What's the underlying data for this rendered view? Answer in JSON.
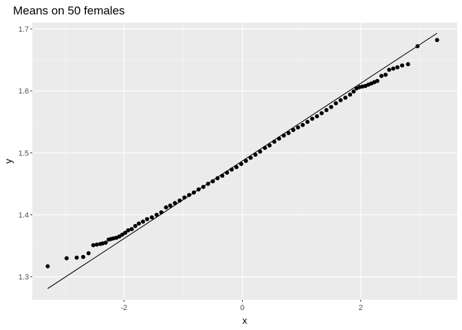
{
  "chart_data": {
    "type": "scatter",
    "title": "Means on 50 females",
    "xlabel": "x",
    "ylabel": "y",
    "xlim": [
      -3.55,
      3.63
    ],
    "ylim": [
      1.263,
      1.71
    ],
    "x_ticks": [
      -2,
      0,
      2
    ],
    "x_tick_labels": [
      "-2",
      "0",
      "2"
    ],
    "y_ticks": [
      1.3,
      1.4,
      1.5,
      1.6,
      1.7
    ],
    "y_tick_labels": [
      "1.3",
      "1.4",
      "1.5",
      "1.6",
      "1.7"
    ],
    "grid": true,
    "reference_line": {
      "x": [
        -3.29,
        3.29
      ],
      "y": [
        1.281,
        1.693
      ]
    },
    "series": [
      {
        "x": [
          -3.29,
          -2.97,
          -2.8,
          -2.69,
          -2.6,
          -2.52,
          -2.46,
          -2.4,
          -2.36,
          -2.31,
          -2.26,
          -2.22,
          -2.18,
          -2.13,
          -2.08,
          -2.03,
          -1.98,
          -1.93,
          -1.87,
          -1.81,
          -1.75,
          -1.68,
          -1.61,
          -1.53,
          -1.45,
          -1.37,
          -1.29,
          -1.22,
          -1.14,
          -1.06,
          -0.98,
          -0.9,
          -0.82,
          -0.74,
          -0.66,
          -0.58,
          -0.5,
          -0.42,
          -0.34,
          -0.26,
          -0.18,
          -0.1,
          -0.02,
          0.06,
          0.14,
          0.22,
          0.3,
          0.38,
          0.46,
          0.54,
          0.62,
          0.7,
          0.78,
          0.86,
          0.94,
          1.02,
          1.1,
          1.18,
          1.26,
          1.34,
          1.42,
          1.5,
          1.58,
          1.66,
          1.74,
          1.82,
          1.88,
          1.93,
          1.98,
          2.03,
          2.08,
          2.13,
          2.18,
          2.23,
          2.28,
          2.35,
          2.42,
          2.48,
          2.55,
          2.62,
          2.7,
          2.8,
          2.96,
          3.29
        ],
        "y": [
          1.317,
          1.33,
          1.331,
          1.332,
          1.338,
          1.351,
          1.352,
          1.353,
          1.354,
          1.355,
          1.36,
          1.361,
          1.362,
          1.363,
          1.365,
          1.368,
          1.371,
          1.375,
          1.377,
          1.382,
          1.386,
          1.389,
          1.393,
          1.396,
          1.4,
          1.404,
          1.412,
          1.415,
          1.419,
          1.423,
          1.428,
          1.432,
          1.436,
          1.441,
          1.445,
          1.45,
          1.454,
          1.459,
          1.463,
          1.468,
          1.473,
          1.477,
          1.482,
          1.487,
          1.492,
          1.497,
          1.502,
          1.508,
          1.512,
          1.518,
          1.523,
          1.528,
          1.532,
          1.537,
          1.541,
          1.545,
          1.55,
          1.555,
          1.559,
          1.564,
          1.569,
          1.574,
          1.58,
          1.585,
          1.589,
          1.594,
          1.599,
          1.604,
          1.606,
          1.607,
          1.608,
          1.61,
          1.612,
          1.614,
          1.616,
          1.624,
          1.626,
          1.634,
          1.636,
          1.638,
          1.641,
          1.643,
          1.672,
          1.682
        ]
      }
    ]
  }
}
